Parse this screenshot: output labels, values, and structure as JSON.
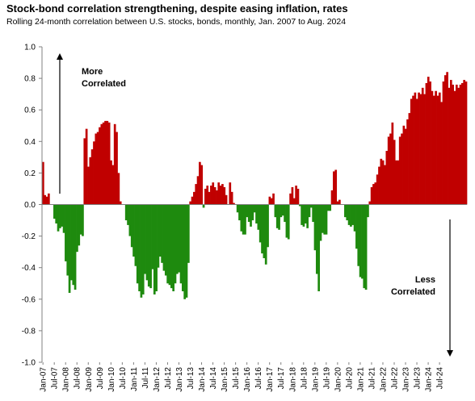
{
  "chart_data": {
    "type": "bar",
    "title": "Stock-bond correlation strengthening, despite easing inflation, rates",
    "subtitle": "Rolling 24-month correlation between U.S. stocks, bonds, monthly, Jan. 2007 to Aug. 2024",
    "xlabel": "",
    "ylabel": "",
    "ylim": [
      -1.0,
      1.0
    ],
    "yticks": [
      "1.0",
      "0.8",
      "0.6",
      "0.4",
      "0.2",
      "0.0",
      "-0.2",
      "-0.4",
      "-0.6",
      "-0.8",
      "-1.0"
    ],
    "xticks": [
      "Jan-07",
      "Jul-07",
      "Jan-08",
      "Jul-08",
      "Jan-09",
      "Jul-09",
      "Jan-10",
      "Jul-10",
      "Jan-11",
      "Jul-11",
      "Jan-12",
      "Jul-12",
      "Jan-13",
      "Jul-13",
      "Jan-14",
      "Jul-14",
      "Jan-15",
      "Jul-15",
      "Jan-16",
      "Jul-16",
      "Jan-17",
      "Jul-17",
      "Jan-18",
      "Jul-18",
      "Jan-19",
      "Jul-19",
      "Jan-20",
      "Jul-20",
      "Jan-21",
      "Jul-21",
      "Jan-22",
      "Jul-22",
      "Jan-23",
      "Jul-23",
      "Jan-24",
      "Jul-24"
    ],
    "grid": false,
    "positive_color": "#c00000",
    "negative_color": "#1e8a0e",
    "annotations": [
      {
        "text": [
          "More",
          "Correlated"
        ],
        "arrow": "up"
      },
      {
        "text": [
          "Less",
          "Correlated"
        ],
        "arrow": "down"
      }
    ],
    "start": "2007-01",
    "end": "2024-08",
    "values": [
      0.27,
      0.06,
      0.05,
      0.07,
      0.0,
      0.0,
      -0.09,
      -0.12,
      -0.17,
      -0.15,
      -0.14,
      -0.18,
      -0.36,
      -0.45,
      -0.56,
      -0.48,
      -0.51,
      -0.54,
      -0.3,
      -0.26,
      -0.19,
      -0.2,
      0.42,
      0.48,
      0.24,
      0.3,
      0.35,
      0.4,
      0.45,
      0.46,
      0.49,
      0.51,
      0.52,
      0.53,
      0.53,
      0.52,
      0.28,
      0.25,
      0.51,
      0.46,
      0.2,
      0.02,
      0.0,
      0.0,
      -0.1,
      -0.13,
      -0.2,
      -0.27,
      -0.33,
      -0.39,
      -0.5,
      -0.55,
      -0.59,
      -0.57,
      -0.44,
      -0.48,
      -0.52,
      -0.53,
      -0.41,
      -0.57,
      -0.55,
      -0.4,
      -0.33,
      -0.37,
      -0.42,
      -0.45,
      -0.5,
      -0.51,
      -0.53,
      -0.55,
      -0.5,
      -0.44,
      -0.43,
      -0.5,
      -0.55,
      -0.6,
      -0.59,
      -0.37,
      0.02,
      0.05,
      0.08,
      0.13,
      0.18,
      0.27,
      0.25,
      -0.02,
      0.1,
      0.12,
      0.08,
      0.12,
      0.14,
      0.11,
      0.09,
      0.14,
      0.12,
      0.13,
      0.11,
      0.06,
      0.0,
      0.14,
      0.08,
      0.01,
      0.0,
      -0.05,
      -0.1,
      -0.17,
      -0.19,
      -0.19,
      -0.08,
      -0.11,
      -0.14,
      -0.1,
      -0.05,
      -0.12,
      -0.16,
      -0.24,
      -0.31,
      -0.34,
      -0.38,
      -0.27,
      0.05,
      0.04,
      0.07,
      -0.08,
      -0.15,
      -0.16,
      -0.08,
      -0.07,
      -0.11,
      -0.21,
      -0.22,
      0.07,
      0.11,
      0.04,
      0.12,
      0.1,
      -0.01,
      -0.13,
      -0.14,
      -0.12,
      -0.15,
      -0.08,
      -0.02,
      -0.11,
      -0.29,
      -0.44,
      -0.55,
      -0.23,
      -0.18,
      -0.19,
      -0.19,
      -0.04,
      -0.04,
      0.09,
      0.21,
      0.22,
      0.02,
      0.03,
      0.0,
      0.0,
      -0.08,
      -0.1,
      -0.13,
      -0.14,
      -0.13,
      -0.17,
      -0.28,
      -0.39,
      -0.46,
      -0.47,
      -0.53,
      -0.54,
      -0.08,
      0.02,
      0.11,
      0.13,
      0.14,
      0.19,
      0.24,
      0.29,
      0.28,
      0.25,
      0.34,
      0.43,
      0.45,
      0.52,
      0.41,
      0.28,
      0.28,
      0.43,
      0.45,
      0.5,
      0.48,
      0.54,
      0.58,
      0.67,
      0.69,
      0.71,
      0.67,
      0.71,
      0.7,
      0.74,
      0.7,
      0.77,
      0.81,
      0.78,
      0.72,
      0.69,
      0.72,
      0.69,
      0.71,
      0.65,
      0.78,
      0.82,
      0.84,
      0.74,
      0.79,
      0.76,
      0.72,
      0.76,
      0.74,
      0.76,
      0.77,
      0.79,
      0.78
    ]
  }
}
